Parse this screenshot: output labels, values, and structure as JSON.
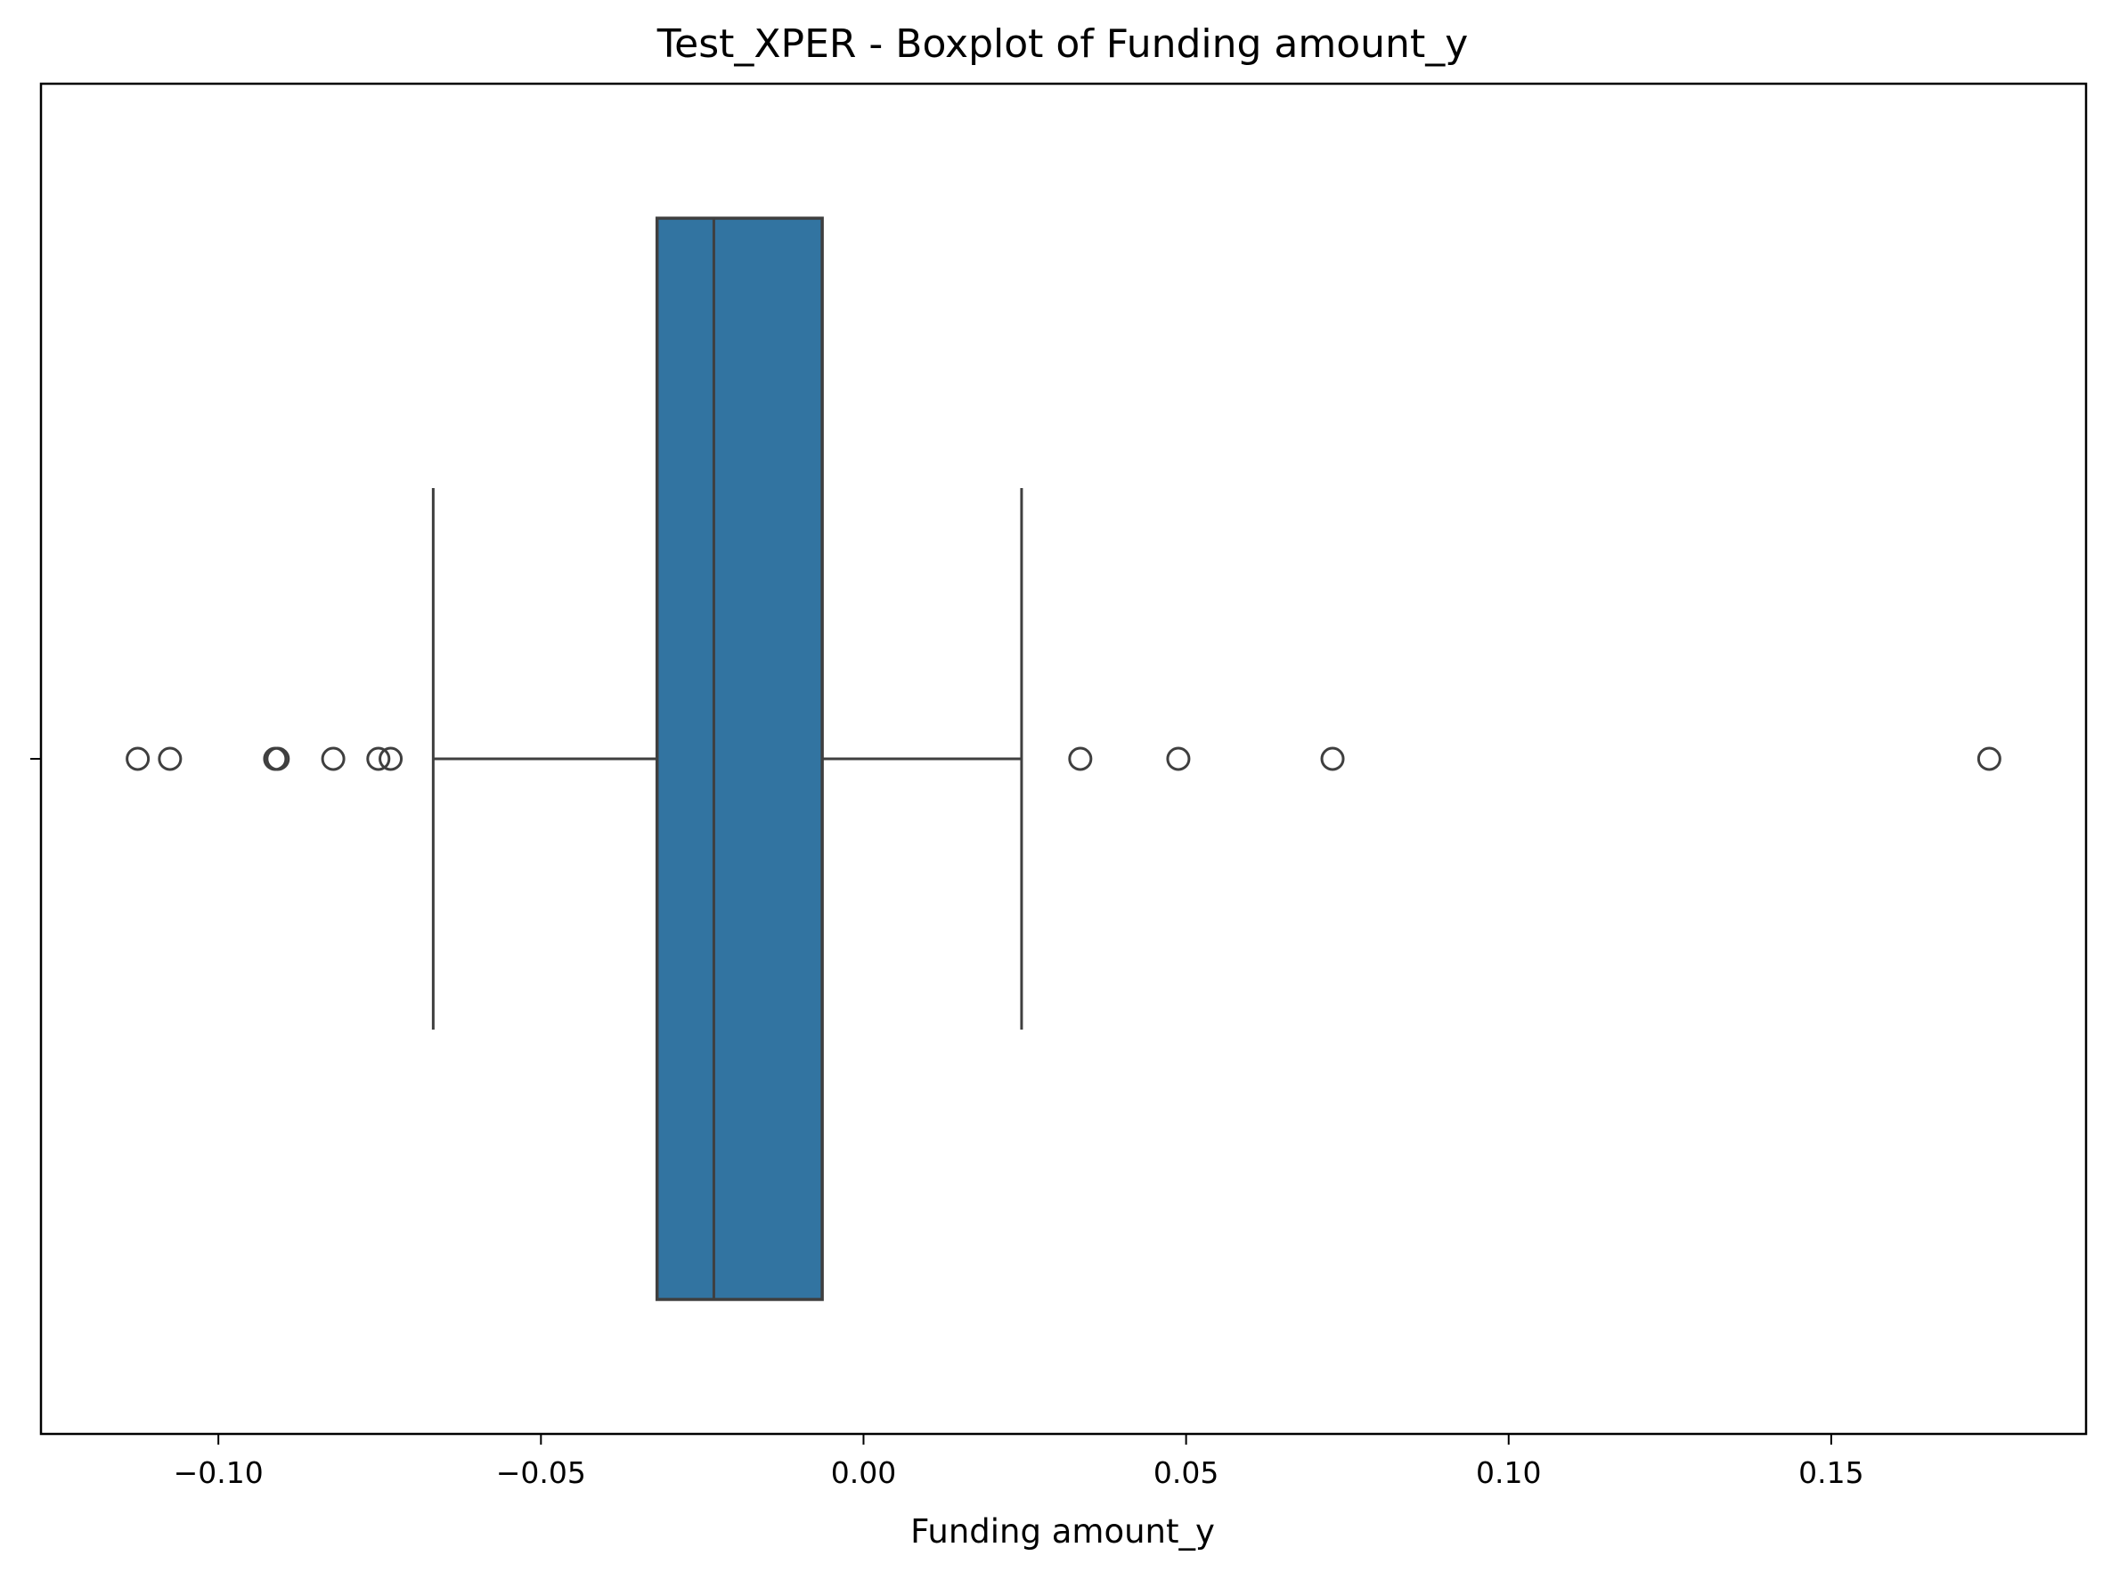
{
  "chart_data": {
    "type": "box",
    "title": "Test_XPER - Boxplot of Funding amount_y",
    "xlabel": "Funding amount_y",
    "ylabel": "",
    "orientation": "horizontal",
    "xlim": [
      -0.1275,
      0.1895
    ],
    "xticks": [
      -0.1,
      -0.05,
      0.0,
      0.05,
      0.1,
      0.15
    ],
    "xtick_labels": [
      "−0.10",
      "−0.05",
      "0.00",
      "0.05",
      "0.10",
      "0.15"
    ],
    "grid": false,
    "series": [
      {
        "whisker_low": -0.0667,
        "q1": -0.032,
        "median": -0.0232,
        "q3": -0.0064,
        "whisker_high": 0.0245,
        "outliers": [
          -0.1125,
          -0.1075,
          -0.0912,
          -0.0908,
          -0.0822,
          -0.0752,
          -0.0733,
          0.0336,
          0.0488,
          0.0727,
          0.1745
        ]
      }
    ],
    "colors": {
      "box_fill": "#3274a1",
      "line": "#3f3f3f",
      "frame": "#000000"
    }
  }
}
